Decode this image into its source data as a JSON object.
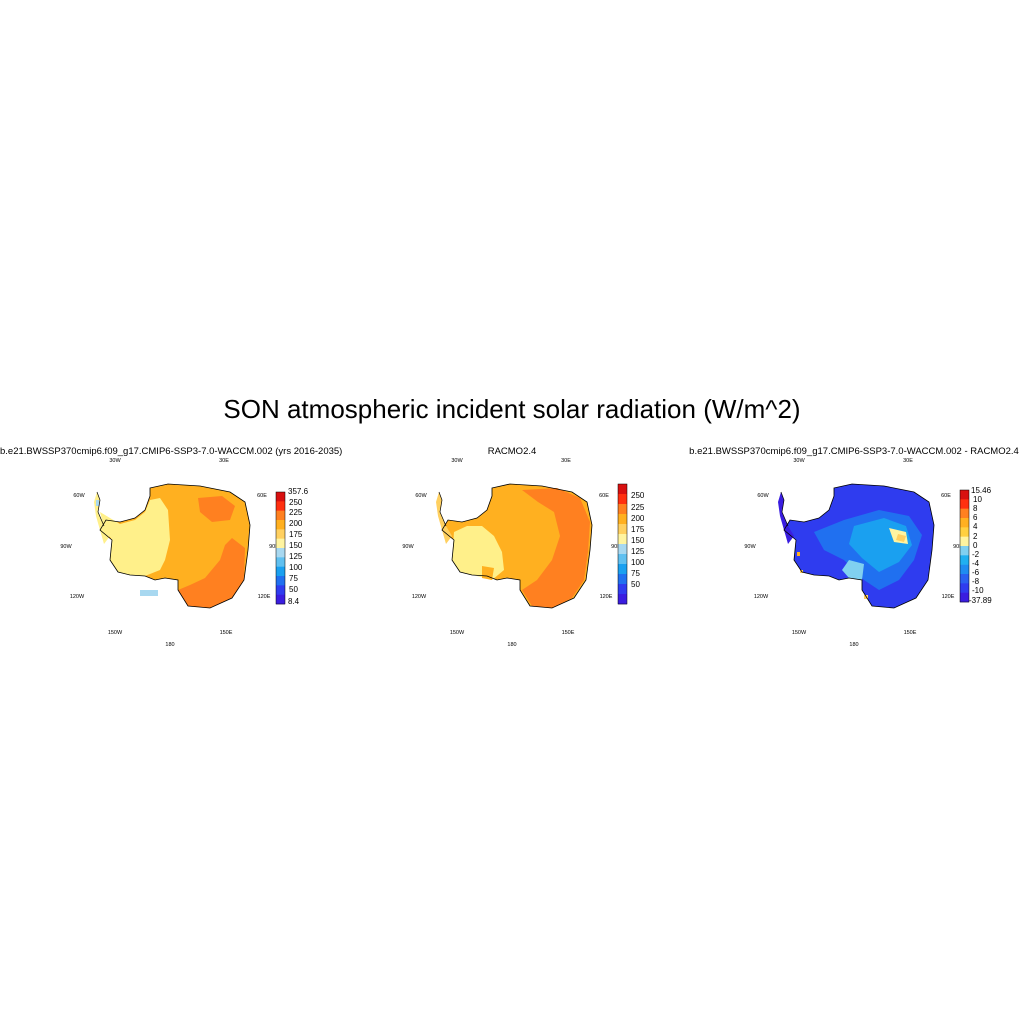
{
  "title": "SON atmospheric incident solar radiation (W/m^2)",
  "colors": {
    "levels_blue_to_red": [
      "#3a1de0",
      "#2f3cef",
      "#2070f0",
      "#1aa0f0",
      "#60c0f0",
      "#a8d8f0",
      "#fff4a0",
      "#ffd060",
      "#ffb020",
      "#ff8020",
      "#ff3010",
      "#d81010"
    ],
    "diff_scale": [
      "#3a1de0",
      "#2f3cef",
      "#2a60f0",
      "#1f8cf0",
      "#20b0f0",
      "#80d0f0",
      "#fff4a0",
      "#ffd040",
      "#ffb020",
      "#ff8020",
      "#ff3010",
      "#d81010"
    ]
  },
  "panels": [
    {
      "title": "b.e21.BWSSP370cmip6.f09_g17.CMIP6-SSP3-7.0-WACCM.002 (yrs 2016-2035)",
      "lon_labels": [
        "30W",
        "30E",
        "60W",
        "60E",
        "90W",
        "90E",
        "120W",
        "120E",
        "150W",
        "150E",
        "180"
      ],
      "colorbar_labels": [
        "357.6",
        "250",
        "225",
        "200",
        "175",
        "150",
        "125",
        "100",
        "75",
        "50",
        "8.4"
      ]
    },
    {
      "title": "RACMO2.4",
      "lon_labels": [
        "30W",
        "30E",
        "60W",
        "60E",
        "90W",
        "90E",
        "120W",
        "120E",
        "150W",
        "150E",
        "180"
      ],
      "colorbar_labels": [
        "250",
        "225",
        "200",
        "175",
        "150",
        "125",
        "100",
        "75",
        "50"
      ]
    },
    {
      "title": "b.e21.BWSSP370cmip6.f09_g17.CMIP6-SSP3-7.0-WACCM.002 - RACMO2.4",
      "lon_labels": [
        "30W",
        "30E",
        "60W",
        "60E",
        "90W",
        "90E",
        "120W",
        "120E",
        "150W",
        "150E",
        "180"
      ],
      "colorbar_labels": [
        "15.46",
        "10",
        "8",
        "6",
        "4",
        "2",
        "0",
        "-2",
        "-4",
        "-6",
        "-8",
        "-10",
        "-37.89"
      ]
    }
  ]
}
